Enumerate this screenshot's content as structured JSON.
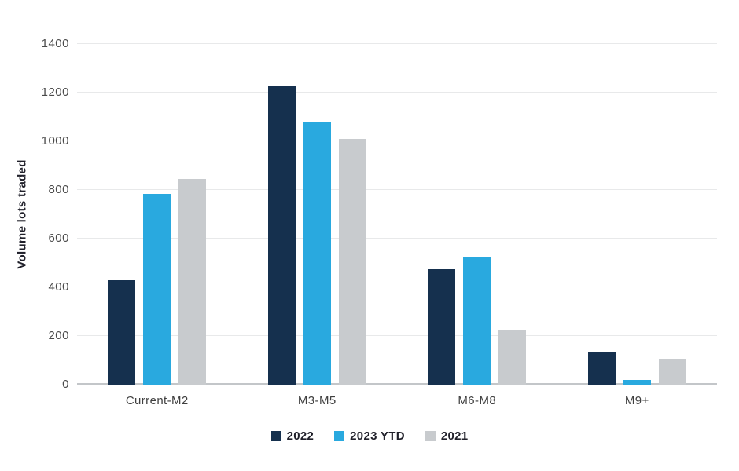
{
  "chart_data": {
    "type": "bar",
    "title": "",
    "categories": [
      "Current-M2",
      "M3-M5",
      "M6-M8",
      "M9+"
    ],
    "series": [
      {
        "name": "2022",
        "color": "#15304E",
        "values": [
          430,
          1225,
          475,
          135
        ]
      },
      {
        "name": "2023 YTD",
        "color": "#29A9DF",
        "values": [
          785,
          1080,
          525,
          20
        ]
      },
      {
        "name": "2021",
        "color": "#C8CBCE",
        "values": [
          845,
          1010,
          225,
          105
        ]
      }
    ],
    "xlabel": "",
    "ylabel": "Volume lots traded",
    "ylim": [
      0,
      1400
    ],
    "yticks": [
      0,
      200,
      400,
      600,
      800,
      1000,
      1200,
      1400
    ],
    "grid": true,
    "legend_position": "bottom-center"
  },
  "colors": {
    "background": "#FFFFFF",
    "gridline": "#E8E9EA",
    "axis_line": "#C3C6C9",
    "tick_text": "#4A4A4A",
    "category_text": "#3F3F3F",
    "label_text": "#20202A"
  }
}
